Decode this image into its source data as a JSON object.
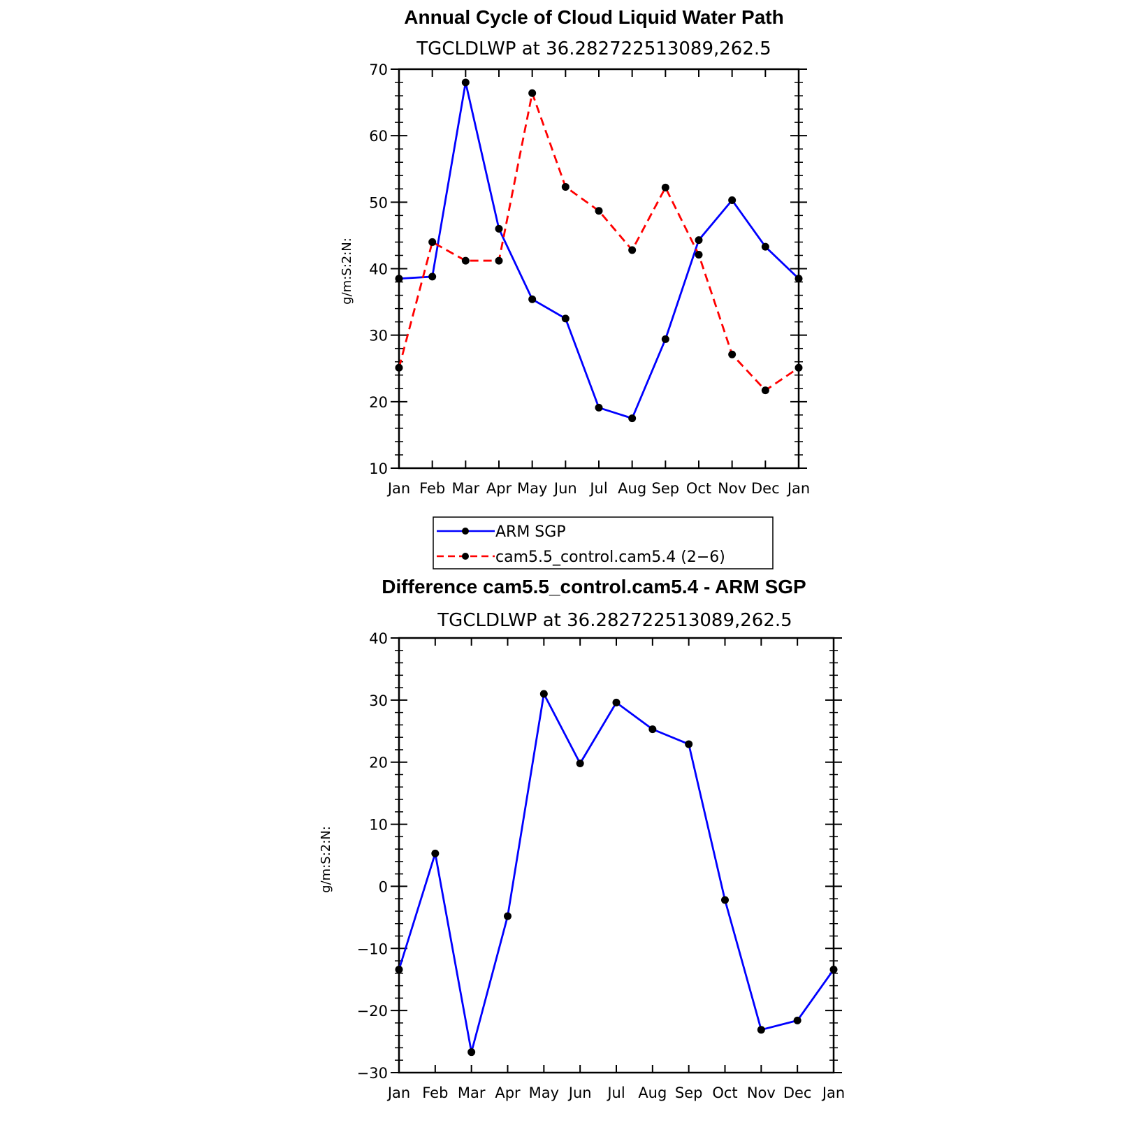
{
  "chart_data": [
    {
      "type": "line",
      "title": "Annual Cycle of Cloud Liquid Water Path",
      "subtitle": "TGCLDLWP  at  36.282722513089,262.5",
      "ylabel": "g/m:S:2:N:",
      "xlabel": "",
      "categories": [
        "Jan",
        "Feb",
        "Mar",
        "Apr",
        "May",
        "Jun",
        "Jul",
        "Aug",
        "Sep",
        "Oct",
        "Nov",
        "Dec",
        "Jan"
      ],
      "ylim": [
        10,
        70
      ],
      "yticks": [
        10,
        20,
        30,
        40,
        50,
        60,
        70
      ],
      "series": [
        {
          "name": "ARM SGP",
          "color": "#0000ff",
          "dash": "solid",
          "values": [
            38.5,
            38.8,
            68.0,
            46.0,
            35.4,
            32.5,
            19.1,
            17.5,
            29.4,
            44.3,
            50.3,
            43.3,
            38.5
          ]
        },
        {
          "name": "cam5.5_control.cam5.4 (2−6)",
          "color": "#ff0000",
          "dash": "dashed",
          "values": [
            25.1,
            44.0,
            41.2,
            41.2,
            66.4,
            52.3,
            48.7,
            42.8,
            52.2,
            42.1,
            27.1,
            21.7,
            25.1
          ]
        }
      ],
      "legend": {
        "position": "bottom"
      }
    },
    {
      "type": "line",
      "title": "Difference cam5.5_control.cam5.4 - ARM SGP",
      "subtitle": "TGCLDLWP  at  36.282722513089,262.5",
      "ylabel": "g/m:S:2:N:",
      "xlabel": "",
      "categories": [
        "Jan",
        "Feb",
        "Mar",
        "Apr",
        "May",
        "Jun",
        "Jul",
        "Aug",
        "Sep",
        "Oct",
        "Nov",
        "Dec",
        "Jan"
      ],
      "ylim": [
        -30,
        40
      ],
      "yticks": [
        -30,
        -20,
        -10,
        0,
        10,
        20,
        30,
        40
      ],
      "ytick_labels": [
        "−30",
        "−20",
        "−10",
        "0",
        "10",
        "20",
        "30",
        "40"
      ],
      "series": [
        {
          "name": "",
          "color": "#0000ff",
          "dash": "solid",
          "values": [
            -13.4,
            5.3,
            -26.7,
            -4.8,
            31.0,
            19.8,
            29.6,
            25.3,
            22.9,
            -2.2,
            -23.1,
            -21.6,
            -13.4
          ]
        }
      ]
    }
  ]
}
